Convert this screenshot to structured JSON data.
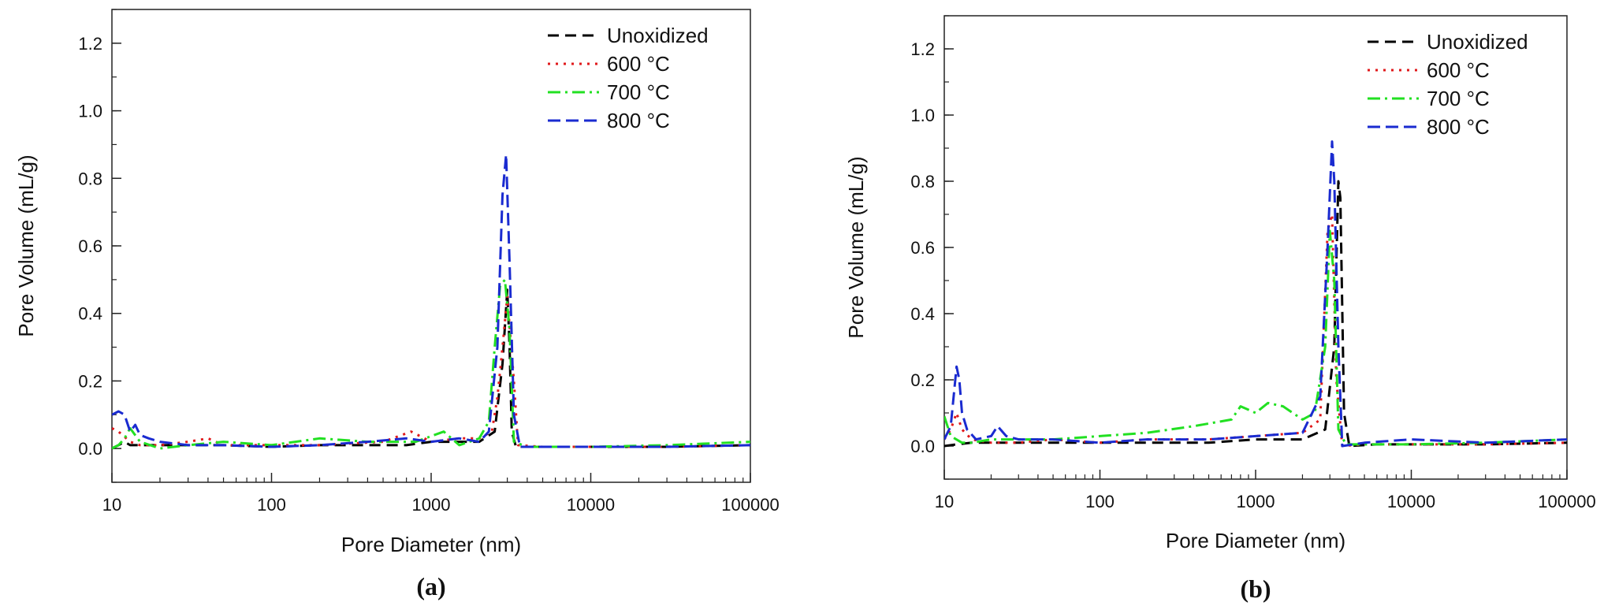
{
  "chart_data": [
    {
      "type": "line",
      "panel_label": "(a)",
      "xlabel": "Pore Diameter (nm)",
      "ylabel": "Pore Volume (mL/g)",
      "xscale": "log",
      "xlim": [
        10,
        100000
      ],
      "ylim": [
        -0.1,
        1.3
      ],
      "xticks": [
        10,
        100,
        1000,
        10000,
        100000
      ],
      "xtick_labels": [
        "10",
        "100",
        "1000",
        "10000",
        "100000"
      ],
      "yticks": [
        0.0,
        0.2,
        0.4,
        0.6,
        0.8,
        1.0,
        1.2
      ],
      "ytick_labels": [
        "0.0",
        "0.2",
        "0.4",
        "0.6",
        "0.8",
        "1.0",
        "1.2"
      ],
      "legend_position": "top-right",
      "series": [
        {
          "name": "Unoxidized",
          "color": "#000000",
          "dash": "dash",
          "x": [
            10,
            11,
            12,
            13,
            15,
            20,
            30,
            50,
            100,
            200,
            400,
            700,
            1000,
            1500,
            2000,
            2500,
            2800,
            3000,
            3100,
            3200,
            3400,
            4000,
            6000,
            10000,
            30000,
            100000
          ],
          "y": [
            0.0,
            0.01,
            0.02,
            0.01,
            0.01,
            0.01,
            0.01,
            0.01,
            0.005,
            0.01,
            0.01,
            0.01,
            0.02,
            0.02,
            0.02,
            0.05,
            0.25,
            0.47,
            0.3,
            0.05,
            0.005,
            0.005,
            0.005,
            0.005,
            0.005,
            0.01
          ]
        },
        {
          "name": "600 °C",
          "color": "#e0191b",
          "dash": "dot",
          "x": [
            10,
            11,
            13,
            15,
            20,
            30,
            40,
            50,
            100,
            200,
            500,
            750,
            1000,
            1500,
            2000,
            2400,
            2600,
            2800,
            3000,
            3300,
            3500,
            5000,
            10000,
            30000,
            100000
          ],
          "y": [
            0.06,
            0.05,
            0.02,
            0.01,
            0.01,
            0.02,
            0.03,
            0.01,
            0.01,
            0.01,
            0.02,
            0.05,
            0.02,
            0.03,
            0.03,
            0.05,
            0.15,
            0.3,
            0.45,
            0.2,
            0.01,
            0.005,
            0.005,
            0.005,
            0.01
          ]
        },
        {
          "name": "700 °C",
          "color": "#22e022",
          "dash": "dashdot",
          "x": [
            10,
            11,
            12,
            13,
            15,
            20,
            30,
            50,
            100,
            200,
            400,
            800,
            1200,
            1500,
            2000,
            2300,
            2500,
            2700,
            2900,
            3100,
            3300,
            4000,
            6000,
            10000,
            30000,
            100000
          ],
          "y": [
            0.0,
            0.01,
            0.03,
            0.06,
            0.02,
            0.0,
            0.01,
            0.02,
            0.01,
            0.03,
            0.02,
            0.02,
            0.05,
            0.01,
            0.03,
            0.08,
            0.3,
            0.48,
            0.5,
            0.35,
            0.02,
            0.005,
            0.005,
            0.005,
            0.01,
            0.02
          ]
        },
        {
          "name": "800 °C",
          "color": "#1a2bd0",
          "dash": "longdash",
          "x": [
            10,
            11,
            12,
            13,
            14,
            15,
            17,
            20,
            30,
            50,
            100,
            200,
            400,
            700,
            1000,
            1500,
            2000,
            2300,
            2600,
            2800,
            2950,
            3100,
            3300,
            3600,
            5000,
            10000,
            30000,
            100000
          ],
          "y": [
            0.1,
            0.11,
            0.1,
            0.05,
            0.07,
            0.04,
            0.03,
            0.02,
            0.01,
            0.01,
            0.005,
            0.01,
            0.02,
            0.03,
            0.02,
            0.03,
            0.02,
            0.05,
            0.3,
            0.75,
            0.87,
            0.55,
            0.1,
            0.005,
            0.005,
            0.005,
            0.005,
            0.01
          ]
        }
      ]
    },
    {
      "type": "line",
      "panel_label": "(b)",
      "xlabel": "Pore Diameter (nm)",
      "ylabel": "Pore Volume (mL/g)",
      "xscale": "log",
      "xlim": [
        10,
        100000
      ],
      "ylim": [
        -0.1,
        1.3
      ],
      "xticks": [
        10,
        100,
        1000,
        10000,
        100000
      ],
      "xtick_labels": [
        "10",
        "100",
        "1000",
        "10000",
        "100000"
      ],
      "yticks": [
        0.0,
        0.2,
        0.4,
        0.6,
        0.8,
        1.0,
        1.2
      ],
      "ytick_labels": [
        "0.0",
        "0.2",
        "0.4",
        "0.6",
        "0.8",
        "1.0",
        "1.2"
      ],
      "legend_position": "top-right",
      "series": [
        {
          "name": "Unoxidized",
          "color": "#000000",
          "dash": "dash",
          "x": [
            10,
            12,
            15,
            20,
            30,
            50,
            100,
            200,
            500,
            1000,
            2000,
            2800,
            3200,
            3400,
            3500,
            3700,
            4000,
            6000,
            10000,
            30000,
            100000
          ],
          "y": [
            0.0,
            0.005,
            0.01,
            0.01,
            0.01,
            0.01,
            0.01,
            0.01,
            0.01,
            0.02,
            0.02,
            0.05,
            0.3,
            0.8,
            0.75,
            0.1,
            0.0,
            0.005,
            0.005,
            0.005,
            0.01
          ]
        },
        {
          "name": "600 °C",
          "color": "#e0191b",
          "dash": "dot",
          "x": [
            10,
            11,
            12,
            13,
            15,
            20,
            30,
            50,
            100,
            200,
            500,
            1000,
            2000,
            2600,
            2900,
            3100,
            3300,
            3600,
            5000,
            10000,
            30000,
            100000
          ],
          "y": [
            0.02,
            0.05,
            0.1,
            0.05,
            0.02,
            0.01,
            0.01,
            0.02,
            0.01,
            0.02,
            0.02,
            0.03,
            0.04,
            0.08,
            0.65,
            0.7,
            0.2,
            0.0,
            0.005,
            0.005,
            0.005,
            0.01
          ]
        },
        {
          "name": "700 °C",
          "color": "#22e022",
          "dash": "dashdot",
          "x": [
            10,
            11,
            13,
            15,
            20,
            30,
            50,
            100,
            200,
            400,
            700,
            800,
            1000,
            1200,
            1500,
            2000,
            2400,
            2800,
            3000,
            3200,
            3400,
            3800,
            5000,
            10000,
            30000,
            100000
          ],
          "y": [
            0.09,
            0.03,
            0.01,
            0.01,
            0.02,
            0.02,
            0.02,
            0.03,
            0.04,
            0.06,
            0.08,
            0.12,
            0.1,
            0.13,
            0.12,
            0.08,
            0.1,
            0.3,
            0.65,
            0.5,
            0.05,
            0.005,
            0.005,
            0.005,
            0.01,
            0.02
          ]
        },
        {
          "name": "800 °C",
          "color": "#1a2bd0",
          "dash": "longdash",
          "x": [
            10,
            11,
            12,
            12.5,
            13,
            14,
            16,
            20,
            22,
            25,
            30,
            50,
            100,
            200,
            500,
            1000,
            2000,
            2600,
            2900,
            3100,
            3200,
            3400,
            3600,
            5000,
            10000,
            30000,
            100000
          ],
          "y": [
            0.02,
            0.06,
            0.24,
            0.2,
            0.1,
            0.05,
            0.02,
            0.03,
            0.06,
            0.03,
            0.02,
            0.02,
            0.01,
            0.02,
            0.02,
            0.03,
            0.04,
            0.15,
            0.6,
            0.92,
            0.8,
            0.3,
            0.0,
            0.01,
            0.02,
            0.01,
            0.02
          ]
        }
      ]
    }
  ]
}
